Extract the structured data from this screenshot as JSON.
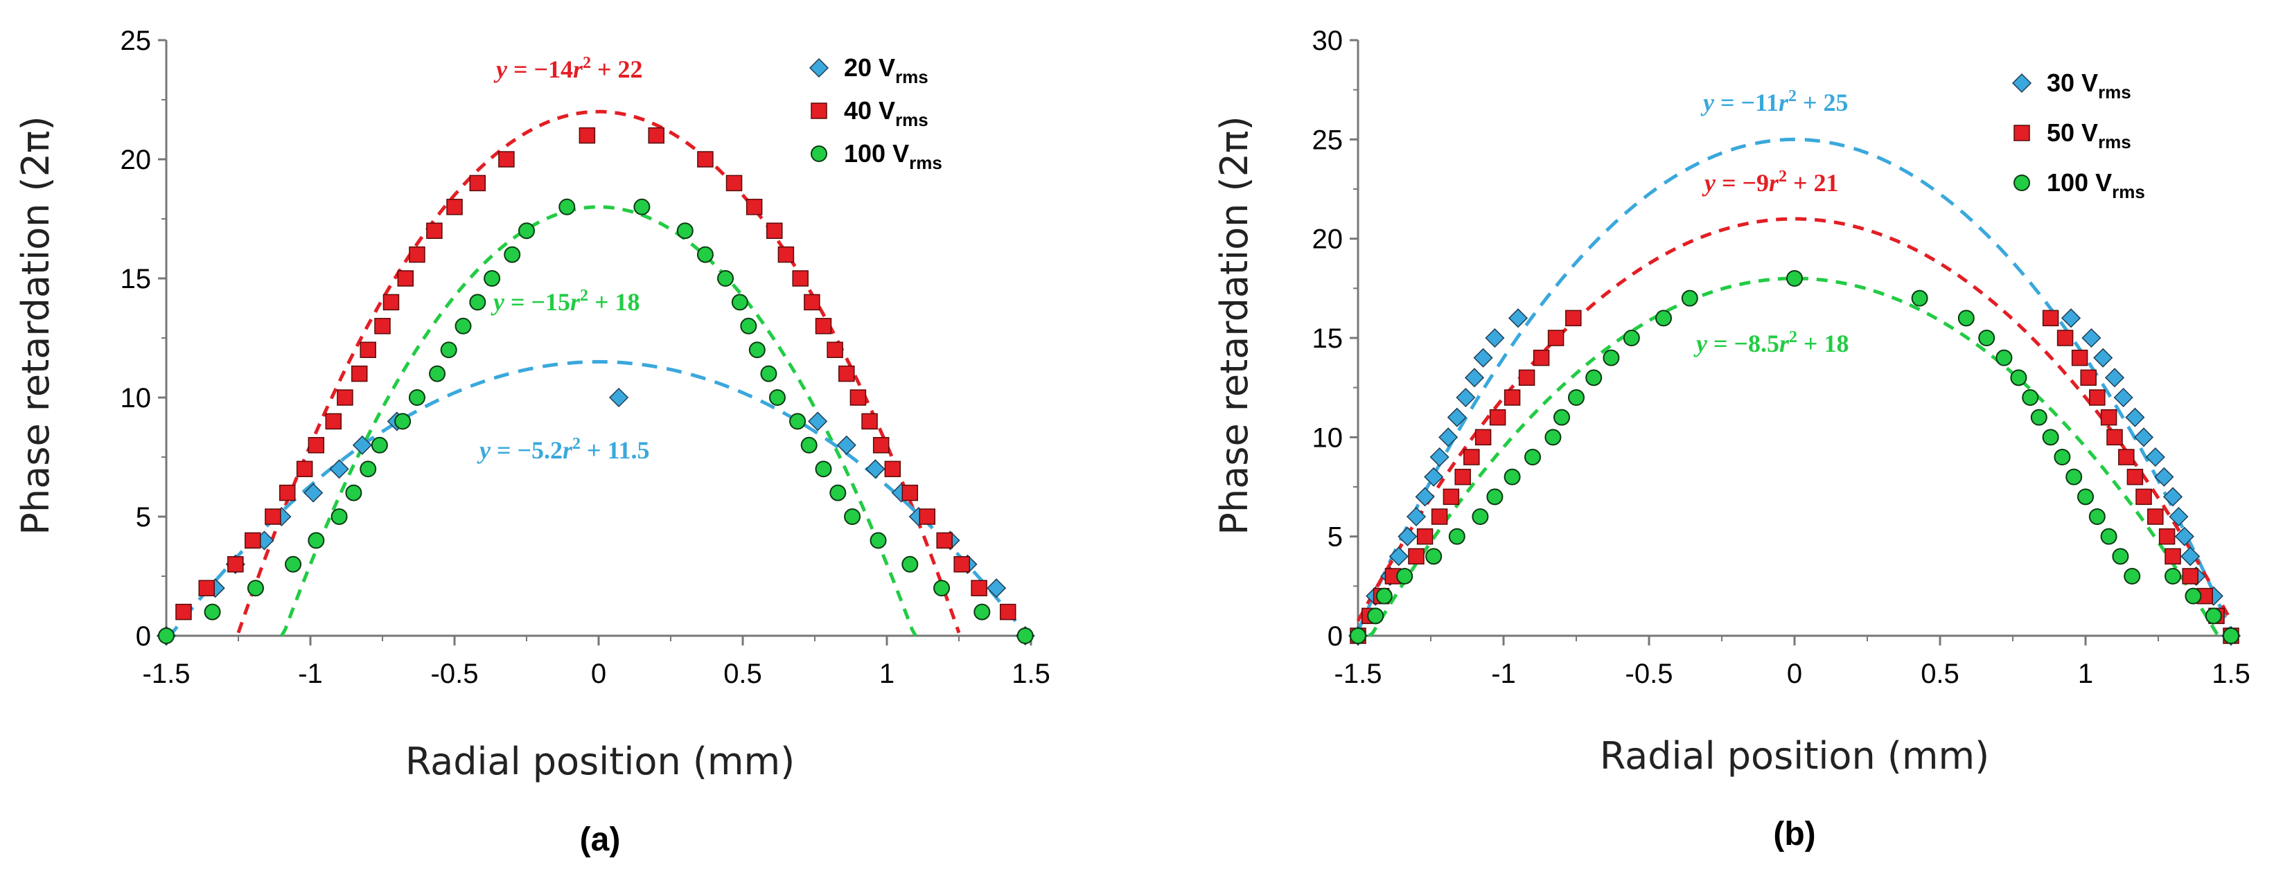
{
  "chart_data": [
    {
      "type": "scatter",
      "panel_label": "(a)",
      "xlabel": "Radial position (mm)",
      "ylabel": "Phase retardation (2π)",
      "xlim": [
        -1.5,
        1.5
      ],
      "ylim": [
        0,
        25
      ],
      "xticks": [
        -1.5,
        -1,
        -0.5,
        0,
        0.5,
        1,
        1.5
      ],
      "xtick_labels": [
        "-1.5",
        "-1",
        "-0.5",
        "0",
        "0.5",
        "1",
        "1.5"
      ],
      "yticks": [
        0,
        5,
        10,
        15,
        20,
        25
      ],
      "ytick_labels": [
        "0",
        "5",
        "10",
        "15",
        "20",
        "25"
      ],
      "legend_position": "top-right",
      "series": [
        {
          "name": "20 V",
          "name_sub": "rms",
          "marker": "diamond",
          "color": "#3aa8dc",
          "points": [
            [
              -1.5,
              0
            ],
            [
              -1.33,
              2
            ],
            [
              -1.26,
              3
            ],
            [
              -1.16,
              4
            ],
            [
              -1.1,
              5
            ],
            [
              -0.99,
              6
            ],
            [
              -0.9,
              7
            ],
            [
              -0.82,
              8
            ],
            [
              -0.7,
              9
            ],
            [
              0.07,
              10
            ],
            [
              0.76,
              9
            ],
            [
              0.86,
              8
            ],
            [
              0.96,
              7
            ],
            [
              1.05,
              6
            ],
            [
              1.11,
              5
            ],
            [
              1.22,
              4
            ],
            [
              1.28,
              3
            ],
            [
              1.38,
              2
            ],
            [
              1.48,
              0
            ]
          ]
        },
        {
          "name": "40 V",
          "name_sub": "rms",
          "marker": "square",
          "color": "#e31e24",
          "points": [
            [
              -1.44,
              1
            ],
            [
              -1.36,
              2
            ],
            [
              -1.26,
              3
            ],
            [
              -1.2,
              4
            ],
            [
              -1.13,
              5
            ],
            [
              -1.08,
              6
            ],
            [
              -1.02,
              7
            ],
            [
              -0.98,
              8
            ],
            [
              -0.92,
              9
            ],
            [
              -0.88,
              10
            ],
            [
              -0.83,
              11
            ],
            [
              -0.8,
              12
            ],
            [
              -0.75,
              13
            ],
            [
              -0.72,
              14
            ],
            [
              -0.67,
              15
            ],
            [
              -0.63,
              16
            ],
            [
              -0.57,
              17
            ],
            [
              -0.5,
              18
            ],
            [
              -0.42,
              19
            ],
            [
              -0.32,
              20
            ],
            [
              -0.04,
              21
            ],
            [
              0.2,
              21
            ],
            [
              0.37,
              20
            ],
            [
              0.47,
              19
            ],
            [
              0.54,
              18
            ],
            [
              0.61,
              17
            ],
            [
              0.65,
              16
            ],
            [
              0.7,
              15
            ],
            [
              0.74,
              14
            ],
            [
              0.78,
              13
            ],
            [
              0.82,
              12
            ],
            [
              0.86,
              11
            ],
            [
              0.9,
              10
            ],
            [
              0.94,
              9
            ],
            [
              0.98,
              8
            ],
            [
              1.02,
              7
            ],
            [
              1.08,
              6
            ],
            [
              1.14,
              5
            ],
            [
              1.2,
              4
            ],
            [
              1.26,
              3
            ],
            [
              1.32,
              2
            ],
            [
              1.42,
              1
            ]
          ]
        },
        {
          "name": "100 V",
          "name_sub": "rms",
          "marker": "circle",
          "color": "#22cc44",
          "points": [
            [
              -1.5,
              0
            ],
            [
              -1.34,
              1
            ],
            [
              -1.19,
              2
            ],
            [
              -1.06,
              3
            ],
            [
              -0.98,
              4
            ],
            [
              -0.9,
              5
            ],
            [
              -0.85,
              6
            ],
            [
              -0.8,
              7
            ],
            [
              -0.76,
              8
            ],
            [
              -0.68,
              9
            ],
            [
              -0.63,
              10
            ],
            [
              -0.56,
              11
            ],
            [
              -0.52,
              12
            ],
            [
              -0.47,
              13
            ],
            [
              -0.42,
              14
            ],
            [
              -0.37,
              15
            ],
            [
              -0.3,
              16
            ],
            [
              -0.25,
              17
            ],
            [
              -0.11,
              18
            ],
            [
              0.15,
              18
            ],
            [
              0.3,
              17
            ],
            [
              0.37,
              16
            ],
            [
              0.44,
              15
            ],
            [
              0.49,
              14
            ],
            [
              0.52,
              13
            ],
            [
              0.55,
              12
            ],
            [
              0.59,
              11
            ],
            [
              0.62,
              10
            ],
            [
              0.69,
              9
            ],
            [
              0.73,
              8
            ],
            [
              0.78,
              7
            ],
            [
              0.83,
              6
            ],
            [
              0.88,
              5
            ],
            [
              0.97,
              4
            ],
            [
              1.08,
              3
            ],
            [
              1.19,
              2
            ],
            [
              1.33,
              1
            ],
            [
              1.48,
              0
            ]
          ]
        }
      ],
      "fits": [
        {
          "label_prefix": "y",
          "label_rest": " = −14",
          "var": "r",
          "exp": "2",
          "tail": " + 22",
          "a": -14,
          "b": 22,
          "color": "#e31e24",
          "dash": "short"
        },
        {
          "label_prefix": "y",
          "label_rest": " = −15",
          "var": "r",
          "exp": "2",
          "tail": " + 18",
          "a": -15,
          "b": 18,
          "color": "#22cc44",
          "dash": "short"
        },
        {
          "label_prefix": "y",
          "label_rest": " = −5.2",
          "var": "r",
          "exp": "2",
          "tail": " + 11.5",
          "a": -5.2,
          "b": 11.5,
          "color": "#3aa8dc",
          "dash": "long"
        }
      ]
    },
    {
      "type": "scatter",
      "panel_label": "(b)",
      "xlabel": "Radial position (mm)",
      "ylabel": "Phase retardation (2π)",
      "xlim": [
        -1.5,
        1.5
      ],
      "ylim": [
        0,
        30
      ],
      "xticks": [
        -1.5,
        -1,
        -0.5,
        0,
        0.5,
        1,
        1.5
      ],
      "xtick_labels": [
        "-1.5",
        "-1",
        "-0.5",
        "0",
        "0.5",
        "1",
        "1.5"
      ],
      "yticks": [
        0,
        5,
        10,
        15,
        20,
        25,
        30
      ],
      "ytick_labels": [
        "0",
        "5",
        "10",
        "15",
        "20",
        "25",
        "30"
      ],
      "legend_position": "top-right",
      "series": [
        {
          "name": "30 V",
          "name_sub": "rms",
          "marker": "diamond",
          "color": "#3aa8dc",
          "points": [
            [
              -1.5,
              0
            ],
            [
              -1.44,
              2
            ],
            [
              -1.39,
              3
            ],
            [
              -1.36,
              4
            ],
            [
              -1.33,
              5
            ],
            [
              -1.3,
              6
            ],
            [
              -1.27,
              7
            ],
            [
              -1.24,
              8
            ],
            [
              -1.22,
              9
            ],
            [
              -1.19,
              10
            ],
            [
              -1.16,
              11
            ],
            [
              -1.13,
              12
            ],
            [
              -1.1,
              13
            ],
            [
              -1.07,
              14
            ],
            [
              -1.03,
              15
            ],
            [
              -0.95,
              16
            ],
            [
              0.95,
              16
            ],
            [
              1.02,
              15
            ],
            [
              1.06,
              14
            ],
            [
              1.1,
              13
            ],
            [
              1.13,
              12
            ],
            [
              1.17,
              11
            ],
            [
              1.2,
              10
            ],
            [
              1.24,
              9
            ],
            [
              1.27,
              8
            ],
            [
              1.3,
              7
            ],
            [
              1.32,
              6
            ],
            [
              1.34,
              5
            ],
            [
              1.36,
              4
            ],
            [
              1.38,
              3
            ],
            [
              1.44,
              2
            ],
            [
              1.5,
              0
            ]
          ]
        },
        {
          "name": "50 V",
          "name_sub": "rms",
          "marker": "square",
          "color": "#e31e24",
          "points": [
            [
              -1.5,
              0
            ],
            [
              -1.46,
              1
            ],
            [
              -1.42,
              2
            ],
            [
              -1.38,
              3
            ],
            [
              -1.3,
              4
            ],
            [
              -1.27,
              5
            ],
            [
              -1.22,
              6
            ],
            [
              -1.18,
              7
            ],
            [
              -1.14,
              8
            ],
            [
              -1.11,
              9
            ],
            [
              -1.07,
              10
            ],
            [
              -1.02,
              11
            ],
            [
              -0.97,
              12
            ],
            [
              -0.92,
              13
            ],
            [
              -0.87,
              14
            ],
            [
              -0.82,
              15
            ],
            [
              -0.76,
              16
            ],
            [
              0.88,
              16
            ],
            [
              0.93,
              15
            ],
            [
              0.98,
              14
            ],
            [
              1.01,
              13
            ],
            [
              1.04,
              12
            ],
            [
              1.08,
              11
            ],
            [
              1.1,
              10
            ],
            [
              1.14,
              9
            ],
            [
              1.17,
              8
            ],
            [
              1.2,
              7
            ],
            [
              1.24,
              6
            ],
            [
              1.28,
              5
            ],
            [
              1.3,
              4
            ],
            [
              1.36,
              3
            ],
            [
              1.41,
              2
            ],
            [
              1.45,
              1
            ],
            [
              1.5,
              0
            ]
          ]
        },
        {
          "name": "100 V",
          "name_sub": "rms",
          "marker": "circle",
          "color": "#22cc44",
          "points": [
            [
              -1.5,
              0
            ],
            [
              -1.44,
              1
            ],
            [
              -1.41,
              2
            ],
            [
              -1.34,
              3
            ],
            [
              -1.24,
              4
            ],
            [
              -1.16,
              5
            ],
            [
              -1.08,
              6
            ],
            [
              -1.03,
              7
            ],
            [
              -0.97,
              8
            ],
            [
              -0.9,
              9
            ],
            [
              -0.83,
              10
            ],
            [
              -0.8,
              11
            ],
            [
              -0.75,
              12
            ],
            [
              -0.69,
              13
            ],
            [
              -0.63,
              14
            ],
            [
              -0.56,
              15
            ],
            [
              -0.45,
              16
            ],
            [
              -0.36,
              17
            ],
            [
              0.0,
              18
            ],
            [
              0.43,
              17
            ],
            [
              0.59,
              16
            ],
            [
              0.66,
              15
            ],
            [
              0.72,
              14
            ],
            [
              0.77,
              13
            ],
            [
              0.81,
              12
            ],
            [
              0.84,
              11
            ],
            [
              0.88,
              10
            ],
            [
              0.92,
              9
            ],
            [
              0.96,
              8
            ],
            [
              1.0,
              7
            ],
            [
              1.04,
              6
            ],
            [
              1.08,
              5
            ],
            [
              1.12,
              4
            ],
            [
              1.16,
              3
            ],
            [
              1.3,
              3
            ],
            [
              1.37,
              2
            ],
            [
              1.44,
              1
            ],
            [
              1.5,
              0
            ]
          ]
        }
      ],
      "fits": [
        {
          "label_prefix": "y",
          "label_rest": " = −11",
          "var": "r",
          "exp": "2",
          "tail": " + 25",
          "a": -11,
          "b": 25,
          "color": "#3aa8dc",
          "dash": "long"
        },
        {
          "label_prefix": "y",
          "label_rest": " = −9",
          "var": "r",
          "exp": "2",
          "tail": " + 21",
          "a": -9,
          "b": 21,
          "color": "#e31e24",
          "dash": "short"
        },
        {
          "label_prefix": "y",
          "label_rest": " = −8.5",
          "var": "r",
          "exp": "2",
          "tail": " + 18",
          "a": -8.5,
          "b": 18,
          "color": "#22cc44",
          "dash": "short"
        }
      ]
    }
  ]
}
